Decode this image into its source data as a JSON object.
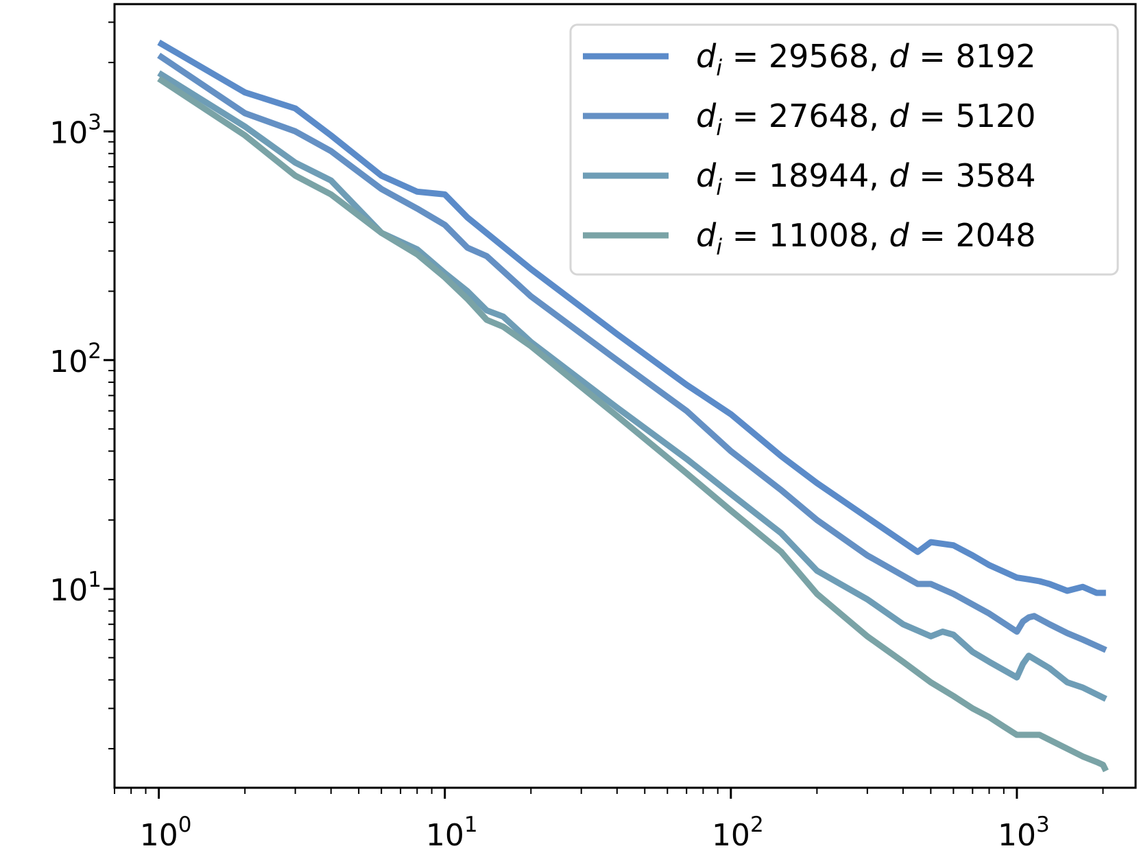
{
  "chart_data": {
    "type": "line",
    "title": "",
    "xlabel": "",
    "ylabel": "",
    "xscale": "log",
    "yscale": "log",
    "xlim": [
      0.7,
      2600
    ],
    "ylim": [
      1.35,
      3600
    ],
    "grid": false,
    "legend_position": "top-right",
    "x_ticks": [
      {
        "base": "10",
        "exp": "0"
      },
      {
        "base": "10",
        "exp": "1"
      },
      {
        "base": "10",
        "exp": "2"
      },
      {
        "base": "10",
        "exp": "3"
      }
    ],
    "y_ticks": [
      {
        "base": "10",
        "exp": "1"
      },
      {
        "base": "10",
        "exp": "2"
      },
      {
        "base": "10",
        "exp": "3"
      }
    ],
    "series": [
      {
        "name": "d_i = 29568, d = 8192",
        "legend": {
          "di": "29568",
          "d": "8192"
        },
        "color": "#5b8bc9",
        "x": [
          1,
          2,
          3,
          4,
          6,
          8,
          10,
          12,
          20,
          40,
          70,
          100,
          150,
          200,
          300,
          450,
          500,
          600,
          700,
          800,
          1000,
          1100,
          1200,
          1300,
          1500,
          1700,
          1900,
          2048
        ],
        "y": [
          2450,
          1480,
          1260,
          960,
          640,
          545,
          530,
          420,
          250,
          130,
          78,
          58,
          38,
          29,
          20.5,
          14.5,
          16,
          15.5,
          14,
          12.7,
          11.2,
          11,
          10.8,
          10.5,
          9.8,
          10.2,
          9.6,
          9.6
        ]
      },
      {
        "name": "d_i = 27648, d = 5120",
        "legend": {
          "di": "27648",
          "d": "5120"
        },
        "color": "#6490c4",
        "x": [
          1,
          2,
          3,
          4,
          6,
          8,
          10,
          12,
          14,
          20,
          40,
          70,
          100,
          150,
          200,
          300,
          450,
          500,
          600,
          800,
          1000,
          1050,
          1100,
          1150,
          1300,
          1500,
          1700,
          2048
        ],
        "y": [
          2150,
          1200,
          1000,
          820,
          560,
          460,
          390,
          310,
          285,
          190,
          100,
          60,
          40,
          27,
          20,
          14,
          10.5,
          10.5,
          9.5,
          7.8,
          6.5,
          7.2,
          7.5,
          7.6,
          7.0,
          6.4,
          6.0,
          5.4
        ]
      },
      {
        "name": "d_i = 18944, d = 3584",
        "legend": {
          "di": "18944",
          "d": "3584"
        },
        "color": "#6e9db6",
        "x": [
          1,
          2,
          3,
          4,
          6,
          8,
          10,
          12,
          14,
          16,
          20,
          40,
          70,
          100,
          150,
          200,
          300,
          400,
          500,
          550,
          600,
          700,
          800,
          1000,
          1050,
          1100,
          1300,
          1500,
          1700,
          2048
        ],
        "y": [
          1800,
          1050,
          730,
          610,
          360,
          305,
          240,
          200,
          165,
          155,
          120,
          62,
          37,
          26,
          17.5,
          12,
          9,
          7,
          6.2,
          6.5,
          6.3,
          5.3,
          4.8,
          4.1,
          4.7,
          5.1,
          4.5,
          3.9,
          3.7,
          3.3
        ]
      },
      {
        "name": "d_i = 11008, d = 2048",
        "legend": {
          "di": "11008",
          "d": "2048"
        },
        "color": "#7aa3a6",
        "x": [
          1,
          2,
          3,
          4,
          6,
          8,
          10,
          12,
          14,
          16,
          20,
          40,
          70,
          100,
          150,
          200,
          300,
          400,
          500,
          600,
          700,
          800,
          900,
          1000,
          1100,
          1200,
          1500,
          1700,
          1900,
          2000,
          2048
        ],
        "y": [
          1700,
          960,
          640,
          530,
          360,
          290,
          230,
          185,
          150,
          140,
          115,
          57,
          32,
          22,
          14.5,
          9.5,
          6.2,
          4.8,
          3.9,
          3.4,
          3.0,
          2.75,
          2.5,
          2.3,
          2.3,
          2.3,
          2.0,
          1.85,
          1.75,
          1.7,
          1.6
        ]
      }
    ]
  }
}
